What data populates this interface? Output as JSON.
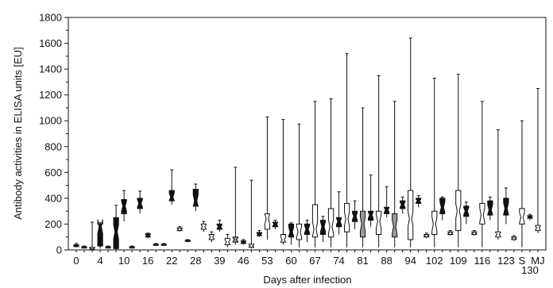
{
  "chart_data": {
    "type": "box",
    "xlabel": "Days after infection",
    "ylabel": "Antibody activities in ELISA units [EU]",
    "ylim": [
      0,
      1800
    ],
    "yticks": [
      0,
      200,
      400,
      600,
      800,
      1000,
      1200,
      1400,
      1600,
      1800
    ],
    "grid": false,
    "xtick_labels": [
      {
        "label": "0",
        "at": 1
      },
      {
        "label": "4",
        "at": 4
      },
      {
        "label": "10",
        "at": 7
      },
      {
        "label": "16",
        "at": 10
      },
      {
        "label": "22",
        "at": 13
      },
      {
        "label": "28",
        "at": 16
      },
      {
        "label": "39",
        "at": 19
      },
      {
        "label": "46",
        "at": 22
      },
      {
        "label": "53",
        "at": 25
      },
      {
        "label": "60",
        "at": 28
      },
      {
        "label": "67",
        "at": 31
      },
      {
        "label": "74",
        "at": 34
      },
      {
        "label": "81",
        "at": 37
      },
      {
        "label": "88",
        "at": 40
      },
      {
        "label": "94",
        "at": 43
      },
      {
        "label": "102",
        "at": 46
      },
      {
        "label": "109",
        "at": 49
      },
      {
        "label": "116",
        "at": 52
      },
      {
        "label": "123",
        "at": 55
      },
      {
        "label": "S",
        "at": 57
      },
      {
        "label": "130",
        "at": 58
      },
      {
        "label": "MJ",
        "at": 59
      }
    ],
    "colors": {
      "dark": "#111111",
      "grey": "#9a9a9a",
      "light": "#ffffff"
    },
    "boxes": [
      {
        "pos": 1,
        "fill": "dark",
        "min": 20,
        "q1": 25,
        "median": 30,
        "q3": 40,
        "max": 50
      },
      {
        "pos": 2,
        "fill": "grey",
        "min": 10,
        "q1": 15,
        "median": 20,
        "q3": 25,
        "max": 30
      },
      {
        "pos": 3,
        "fill": "light",
        "min": 0,
        "q1": 5,
        "median": 10,
        "q3": 20,
        "max": 215
      },
      {
        "pos": 4,
        "fill": "dark",
        "min": 10,
        "q1": 30,
        "median": 180,
        "q3": 200,
        "max": 210
      },
      {
        "pos": 5,
        "fill": "grey",
        "min": 10,
        "q1": 15,
        "median": 20,
        "q3": 25,
        "max": 30
      },
      {
        "pos": 6,
        "fill": "dark",
        "min": 0,
        "q1": 10,
        "median": 140,
        "q3": 250,
        "max": 345
      },
      {
        "pos": 7,
        "fill": "dark",
        "min": 220,
        "q1": 280,
        "median": 340,
        "q3": 390,
        "max": 460
      },
      {
        "pos": 8,
        "fill": "grey",
        "min": 10,
        "q1": 15,
        "median": 20,
        "q3": 25,
        "max": 30
      },
      {
        "pos": 9,
        "fill": "dark",
        "min": 280,
        "q1": 320,
        "median": 360,
        "q3": 400,
        "max": 455
      },
      {
        "pos": 10,
        "fill": "dark",
        "min": 90,
        "q1": 100,
        "median": 110,
        "q3": 125,
        "max": 130
      },
      {
        "pos": 11,
        "fill": "grey",
        "min": 30,
        "q1": 35,
        "median": 40,
        "q3": 45,
        "max": 50
      },
      {
        "pos": 12,
        "fill": "light",
        "min": 30,
        "q1": 35,
        "median": 40,
        "q3": 45,
        "max": 50
      },
      {
        "pos": 13,
        "fill": "dark",
        "min": 350,
        "q1": 380,
        "median": 410,
        "q3": 460,
        "max": 620
      },
      {
        "pos": 14,
        "fill": "light",
        "min": 140,
        "q1": 150,
        "median": 160,
        "q3": 170,
        "max": 180
      },
      {
        "pos": 15,
        "fill": "grey",
        "min": 60,
        "q1": 65,
        "median": 70,
        "q3": 75,
        "max": 80
      },
      {
        "pos": 16,
        "fill": "dark",
        "min": 300,
        "q1": 340,
        "median": 380,
        "q3": 470,
        "max": 510
      },
      {
        "pos": 17,
        "fill": "light",
        "min": 140,
        "q1": 160,
        "median": 180,
        "q3": 200,
        "max": 220
      },
      {
        "pos": 18,
        "fill": "light",
        "min": 60,
        "q1": 80,
        "median": 100,
        "q3": 120,
        "max": 140
      },
      {
        "pos": 19,
        "fill": "dark",
        "min": 140,
        "q1": 160,
        "median": 180,
        "q3": 200,
        "max": 230
      },
      {
        "pos": 20,
        "fill": "light",
        "min": 20,
        "q1": 40,
        "median": 60,
        "q3": 90,
        "max": 120
      },
      {
        "pos": 21,
        "fill": "grey",
        "min": 40,
        "q1": 60,
        "median": 80,
        "q3": 100,
        "max": 640
      },
      {
        "pos": 22,
        "fill": "dark",
        "min": 40,
        "q1": 50,
        "median": 60,
        "q3": 70,
        "max": 80
      },
      {
        "pos": 23,
        "fill": "light",
        "min": 10,
        "q1": 20,
        "median": 30,
        "q3": 45,
        "max": 540
      },
      {
        "pos": 24,
        "fill": "dark",
        "min": 100,
        "q1": 110,
        "median": 120,
        "q3": 135,
        "max": 150
      },
      {
        "pos": 25,
        "fill": "light",
        "min": 80,
        "q1": 160,
        "median": 240,
        "q3": 280,
        "max": 1030
      },
      {
        "pos": 26,
        "fill": "dark",
        "min": 160,
        "q1": 180,
        "median": 200,
        "q3": 215,
        "max": 230
      },
      {
        "pos": 27,
        "fill": "light",
        "min": 40,
        "q1": 60,
        "median": 80,
        "q3": 120,
        "max": 1010
      },
      {
        "pos": 28,
        "fill": "dark",
        "min": 40,
        "q1": 100,
        "median": 140,
        "q3": 200,
        "max": 210
      },
      {
        "pos": 29,
        "fill": "light",
        "min": 20,
        "q1": 80,
        "median": 140,
        "q3": 200,
        "max": 975
      },
      {
        "pos": 30,
        "fill": "dark",
        "min": 60,
        "q1": 120,
        "median": 160,
        "q3": 200,
        "max": 230
      },
      {
        "pos": 31,
        "fill": "light",
        "min": 20,
        "q1": 100,
        "median": 160,
        "q3": 350,
        "max": 1150
      },
      {
        "pos": 32,
        "fill": "dark",
        "min": 60,
        "q1": 120,
        "median": 180,
        "q3": 230,
        "max": 260
      },
      {
        "pos": 33,
        "fill": "light",
        "min": 20,
        "q1": 100,
        "median": 180,
        "q3": 320,
        "max": 1170
      },
      {
        "pos": 34,
        "fill": "dark",
        "min": 120,
        "q1": 180,
        "median": 220,
        "q3": 250,
        "max": 450
      },
      {
        "pos": 35,
        "fill": "light",
        "min": 20,
        "q1": 140,
        "median": 240,
        "q3": 360,
        "max": 1520
      },
      {
        "pos": 36,
        "fill": "dark",
        "min": 160,
        "q1": 220,
        "median": 260,
        "q3": 300,
        "max": 380
      },
      {
        "pos": 37,
        "fill": "grey",
        "min": 20,
        "q1": 100,
        "median": 200,
        "q3": 300,
        "max": 1100
      },
      {
        "pos": 38,
        "fill": "dark",
        "min": 180,
        "q1": 230,
        "median": 270,
        "q3": 300,
        "max": 580
      },
      {
        "pos": 39,
        "fill": "light",
        "min": 20,
        "q1": 120,
        "median": 220,
        "q3": 300,
        "max": 1350
      },
      {
        "pos": 40,
        "fill": "dark",
        "min": 250,
        "q1": 280,
        "median": 310,
        "q3": 330,
        "max": 490
      },
      {
        "pos": 41,
        "fill": "grey",
        "min": 20,
        "q1": 100,
        "median": 180,
        "q3": 280,
        "max": 1150
      },
      {
        "pos": 42,
        "fill": "dark",
        "min": 280,
        "q1": 320,
        "median": 350,
        "q3": 380,
        "max": 410
      },
      {
        "pos": 43,
        "fill": "light",
        "min": 20,
        "q1": 80,
        "median": 240,
        "q3": 460,
        "max": 1640
      },
      {
        "pos": 44,
        "fill": "dark",
        "min": 330,
        "q1": 360,
        "median": 380,
        "q3": 400,
        "max": 420
      },
      {
        "pos": 45,
        "fill": "light",
        "min": 90,
        "q1": 100,
        "median": 110,
        "q3": 120,
        "max": 130
      },
      {
        "pos": 46,
        "fill": "light",
        "min": 20,
        "q1": 120,
        "median": 200,
        "q3": 300,
        "max": 1330
      },
      {
        "pos": 47,
        "fill": "dark",
        "min": 230,
        "q1": 280,
        "median": 330,
        "q3": 400,
        "max": 410
      },
      {
        "pos": 48,
        "fill": "light",
        "min": 110,
        "q1": 120,
        "median": 130,
        "q3": 140,
        "max": 150
      },
      {
        "pos": 49,
        "fill": "light",
        "min": 20,
        "q1": 150,
        "median": 300,
        "q3": 460,
        "max": 1360
      },
      {
        "pos": 50,
        "fill": "dark",
        "min": 200,
        "q1": 260,
        "median": 300,
        "q3": 340,
        "max": 370
      },
      {
        "pos": 51,
        "fill": "light",
        "min": 110,
        "q1": 120,
        "median": 130,
        "q3": 140,
        "max": 150
      },
      {
        "pos": 52,
        "fill": "light",
        "min": 20,
        "q1": 200,
        "median": 270,
        "q3": 360,
        "max": 1150
      },
      {
        "pos": 53,
        "fill": "dark",
        "min": 230,
        "q1": 270,
        "median": 310,
        "q3": 380,
        "max": 410
      },
      {
        "pos": 54,
        "fill": "light",
        "min": 80,
        "q1": 100,
        "median": 120,
        "q3": 140,
        "max": 930
      },
      {
        "pos": 55,
        "fill": "dark",
        "min": 200,
        "q1": 270,
        "median": 320,
        "q3": 400,
        "max": 480
      },
      {
        "pos": 56,
        "fill": "light",
        "min": 70,
        "q1": 80,
        "median": 90,
        "q3": 100,
        "max": 110
      },
      {
        "pos": 57,
        "fill": "light",
        "min": 20,
        "q1": 200,
        "median": 250,
        "q3": 320,
        "max": 1000
      },
      {
        "pos": 58,
        "fill": "dark",
        "min": 230,
        "q1": 245,
        "median": 255,
        "q3": 265,
        "max": 275
      },
      {
        "pos": 59,
        "fill": "light",
        "min": 130,
        "q1": 150,
        "median": 170,
        "q3": 190,
        "max": 1250
      }
    ]
  }
}
